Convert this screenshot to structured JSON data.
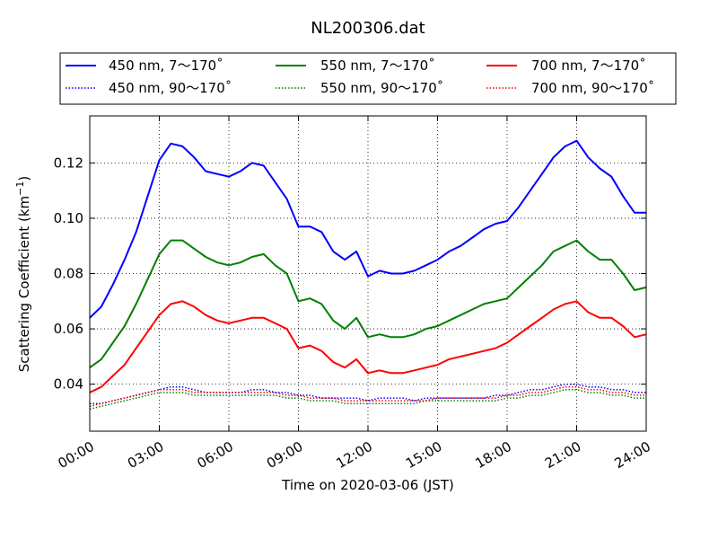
{
  "chart_data": {
    "type": "line",
    "title": "NL200306.dat",
    "xlabel": "Time on 2020-03-06 (JST)",
    "ylabel": "Scattering Coefficient (km",
    "ylabel_unit_exp": "−1",
    "ylabel_close": ")",
    "xlim_hours": [
      0,
      24
    ],
    "ylim": [
      0.023,
      0.137
    ],
    "x_ticks": [
      {
        "hour": 0,
        "label": "00:00"
      },
      {
        "hour": 3,
        "label": "03:00"
      },
      {
        "hour": 6,
        "label": "06:00"
      },
      {
        "hour": 9,
        "label": "09:00"
      },
      {
        "hour": 12,
        "label": "12:00"
      },
      {
        "hour": 15,
        "label": "15:00"
      },
      {
        "hour": 18,
        "label": "18:00"
      },
      {
        "hour": 21,
        "label": "21:00"
      },
      {
        "hour": 24,
        "label": "24:00"
      }
    ],
    "y_ticks": [
      {
        "value": 0.04,
        "label": "0.04"
      },
      {
        "value": 0.06,
        "label": "0.06"
      },
      {
        "value": 0.08,
        "label": "0.08"
      },
      {
        "value": 0.1,
        "label": "0.10"
      },
      {
        "value": 0.12,
        "label": "0.12"
      }
    ],
    "grid": true,
    "legend_position": "top, above plot, 3 columns",
    "x_hours": [
      0,
      0.5,
      1,
      1.5,
      2,
      2.5,
      3,
      3.5,
      4,
      4.5,
      5,
      5.5,
      6,
      6.5,
      7,
      7.5,
      8,
      8.5,
      9,
      9.5,
      10,
      10.5,
      11,
      11.5,
      12,
      12.5,
      13,
      13.5,
      14,
      14.5,
      15,
      15.5,
      16,
      16.5,
      17,
      17.5,
      18,
      18.5,
      19,
      19.5,
      20,
      20.5,
      21,
      21.5,
      22,
      22.5,
      23,
      23.5,
      24
    ],
    "series": [
      {
        "name": "450 nm, 7～170˚",
        "color": "#0000ff",
        "style": "solid",
        "values": [
          0.064,
          0.068,
          0.076,
          0.085,
          0.095,
          0.108,
          0.121,
          0.127,
          0.126,
          0.122,
          0.117,
          0.116,
          0.115,
          0.117,
          0.12,
          0.119,
          0.113,
          0.107,
          0.097,
          0.097,
          0.095,
          0.088,
          0.085,
          0.088,
          0.079,
          0.081,
          0.08,
          0.08,
          0.081,
          0.083,
          0.085,
          0.088,
          0.09,
          0.093,
          0.096,
          0.098,
          0.099,
          0.104,
          0.11,
          0.116,
          0.122,
          0.126,
          0.128,
          0.122,
          0.118,
          0.115,
          0.108,
          0.102,
          0.102
        ]
      },
      {
        "name": "450 nm, 90～170˚",
        "color": "#0000ff",
        "style": "dotted",
        "values": [
          0.033,
          0.033,
          0.034,
          0.035,
          0.036,
          0.037,
          0.038,
          0.039,
          0.039,
          0.038,
          0.037,
          0.037,
          0.037,
          0.037,
          0.038,
          0.038,
          0.037,
          0.037,
          0.036,
          0.036,
          0.035,
          0.035,
          0.035,
          0.035,
          0.034,
          0.035,
          0.035,
          0.035,
          0.034,
          0.035,
          0.035,
          0.035,
          0.035,
          0.035,
          0.035,
          0.036,
          0.036,
          0.037,
          0.038,
          0.038,
          0.039,
          0.04,
          0.04,
          0.039,
          0.039,
          0.038,
          0.038,
          0.037,
          0.037
        ]
      },
      {
        "name": "550 nm, 7～170˚",
        "color": "#008000",
        "style": "solid",
        "values": [
          0.046,
          0.049,
          0.055,
          0.061,
          0.069,
          0.078,
          0.087,
          0.092,
          0.092,
          0.089,
          0.086,
          0.084,
          0.083,
          0.084,
          0.086,
          0.087,
          0.083,
          0.08,
          0.07,
          0.071,
          0.069,
          0.063,
          0.06,
          0.064,
          0.057,
          0.058,
          0.057,
          0.057,
          0.058,
          0.06,
          0.061,
          0.063,
          0.065,
          0.067,
          0.069,
          0.07,
          0.071,
          0.075,
          0.079,
          0.083,
          0.088,
          0.09,
          0.092,
          0.088,
          0.085,
          0.085,
          0.08,
          0.074,
          0.075
        ]
      },
      {
        "name": "550 nm, 90～170˚",
        "color": "#008000",
        "style": "dotted",
        "values": [
          0.031,
          0.032,
          0.033,
          0.034,
          0.035,
          0.036,
          0.037,
          0.037,
          0.037,
          0.036,
          0.036,
          0.036,
          0.036,
          0.036,
          0.036,
          0.036,
          0.036,
          0.035,
          0.035,
          0.034,
          0.034,
          0.034,
          0.033,
          0.033,
          0.033,
          0.033,
          0.033,
          0.033,
          0.033,
          0.034,
          0.034,
          0.034,
          0.034,
          0.034,
          0.034,
          0.034,
          0.035,
          0.035,
          0.036,
          0.036,
          0.037,
          0.038,
          0.038,
          0.037,
          0.037,
          0.036,
          0.036,
          0.035,
          0.035
        ]
      },
      {
        "name": "700 nm, 7～170˚",
        "color": "#ff0000",
        "style": "solid",
        "values": [
          0.037,
          0.039,
          0.043,
          0.047,
          0.053,
          0.059,
          0.065,
          0.069,
          0.07,
          0.068,
          0.065,
          0.063,
          0.062,
          0.063,
          0.064,
          0.064,
          0.062,
          0.06,
          0.053,
          0.054,
          0.052,
          0.048,
          0.046,
          0.049,
          0.044,
          0.045,
          0.044,
          0.044,
          0.045,
          0.046,
          0.047,
          0.049,
          0.05,
          0.051,
          0.052,
          0.053,
          0.055,
          0.058,
          0.061,
          0.064,
          0.067,
          0.069,
          0.07,
          0.066,
          0.064,
          0.064,
          0.061,
          0.057,
          0.058
        ]
      },
      {
        "name": "700 nm, 90～170˚",
        "color": "#ff0000",
        "style": "dotted",
        "values": [
          0.032,
          0.033,
          0.034,
          0.035,
          0.036,
          0.037,
          0.038,
          0.038,
          0.038,
          0.037,
          0.037,
          0.037,
          0.037,
          0.037,
          0.037,
          0.037,
          0.037,
          0.036,
          0.036,
          0.035,
          0.035,
          0.035,
          0.034,
          0.034,
          0.034,
          0.034,
          0.034,
          0.034,
          0.034,
          0.034,
          0.035,
          0.035,
          0.035,
          0.035,
          0.035,
          0.035,
          0.036,
          0.036,
          0.037,
          0.037,
          0.038,
          0.039,
          0.039,
          0.038,
          0.038,
          0.037,
          0.037,
          0.036,
          0.036
        ]
      }
    ]
  }
}
